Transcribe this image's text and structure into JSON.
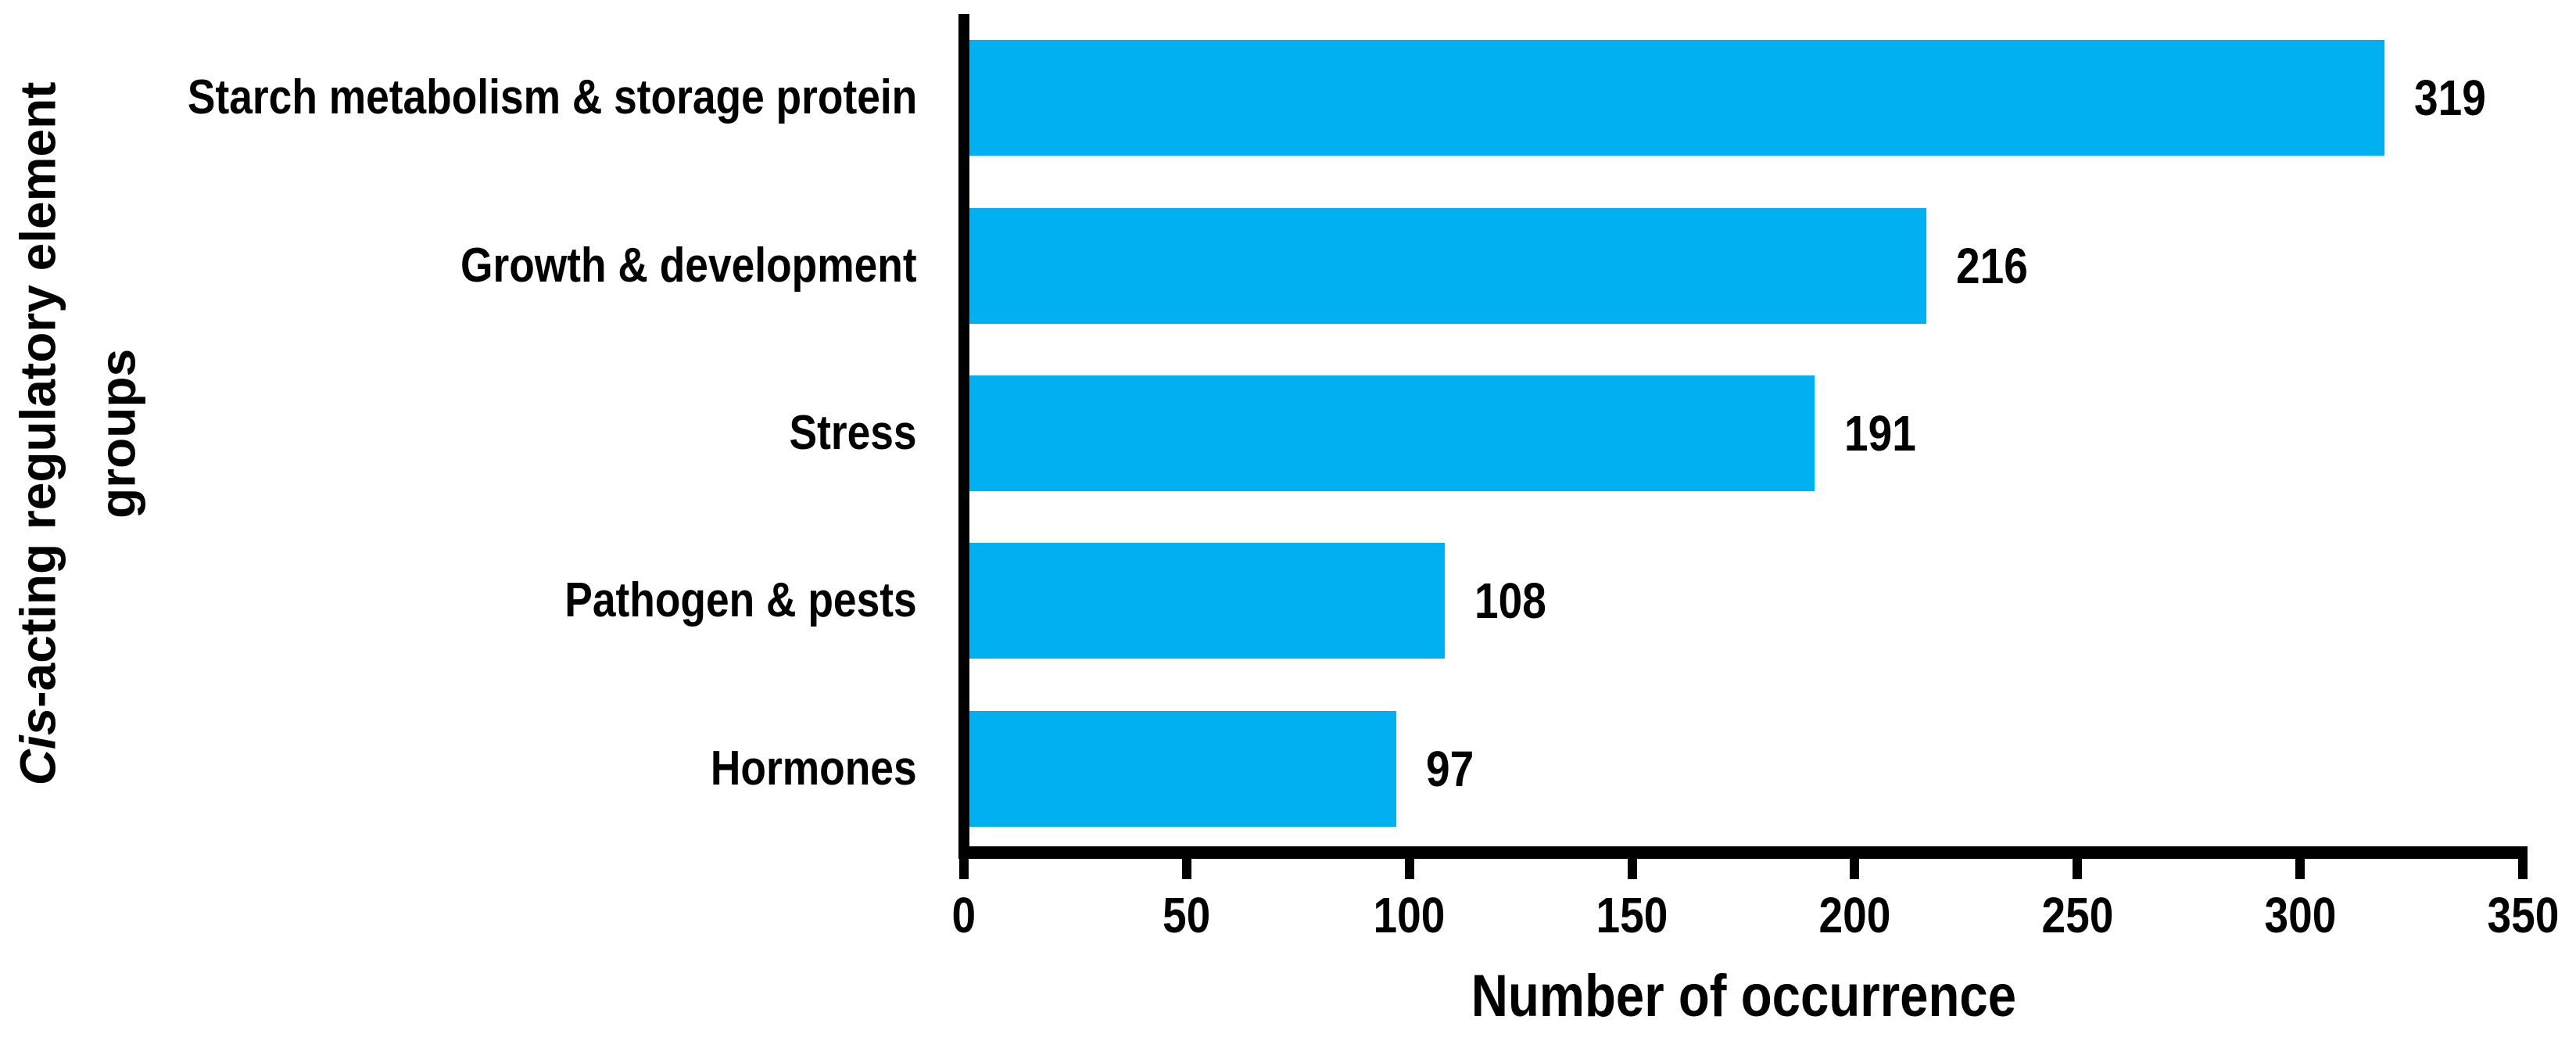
{
  "figure": {
    "background": "#ffffff"
  },
  "chart_data": {
    "type": "bar",
    "orientation": "horizontal",
    "categories": [
      "Starch metabolism & storage protein",
      "Growth & development",
      "Stress",
      "Pathogen & pests",
      "Hormones"
    ],
    "values": [
      319,
      216,
      191,
      108,
      97
    ],
    "value_labels_shown": true,
    "xlabel": "Number of occurrence",
    "ylabel": "Cis-acting regulatory element groups",
    "ylabel_lines": {
      "line1_italic": "Cis",
      "line1_rest": "-acting regulatory element",
      "line2": "groups"
    },
    "xlim": [
      0,
      350
    ],
    "xticks": [
      0,
      50,
      100,
      150,
      200,
      250,
      300,
      350
    ],
    "grid": false,
    "legend": "none",
    "bar_color": "#00b0f0",
    "axis_color": "#000000",
    "text_color": "#000000"
  }
}
